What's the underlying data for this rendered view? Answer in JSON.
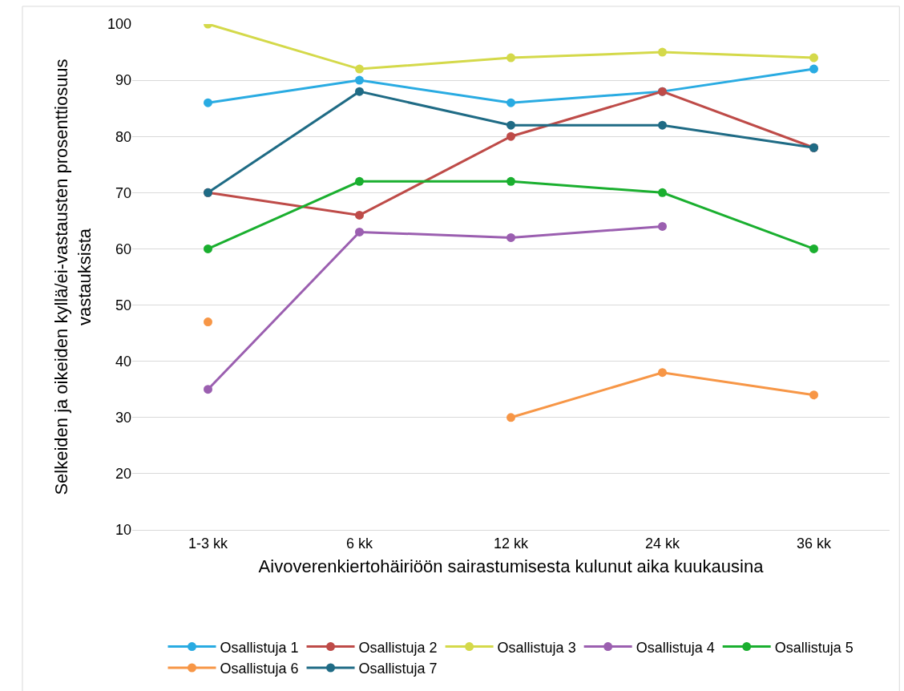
{
  "chart_data": {
    "type": "line",
    "xlabel": "Aivoverenkiertohäiriöön sairastumisesta kulunut aika kuukausina",
    "ylabel": "Selkeiden ja oikeiden kyllä/ei-vastausten prosenttiosuus vastauksista",
    "categories": [
      "1-3 kk",
      "6 kk",
      "12 kk",
      "24 kk",
      "36 kk"
    ],
    "series": [
      {
        "name": "Osallistuja 1",
        "color": "#29abe2",
        "values": [
          86,
          90,
          86,
          88,
          92
        ]
      },
      {
        "name": "Osallistuja 2",
        "color": "#be4b48",
        "values": [
          70,
          66,
          80,
          88,
          78
        ]
      },
      {
        "name": "Osallistuja 3",
        "color": "#d4d94a",
        "values": [
          100,
          92,
          94,
          95,
          94
        ]
      },
      {
        "name": "Osallistuja 4",
        "color": "#9b5fb0",
        "values": [
          35,
          63,
          62,
          64,
          null
        ]
      },
      {
        "name": "Osallistuja 5",
        "color": "#1aaf2f",
        "values": [
          60,
          72,
          72,
          70,
          60
        ]
      },
      {
        "name": "Osallistuja 6",
        "color": "#f79646",
        "values": [
          47,
          null,
          30,
          38,
          34
        ]
      },
      {
        "name": "Osallistuja 7",
        "color": "#1f6b85",
        "values": [
          70,
          88,
          82,
          82,
          78
        ]
      }
    ],
    "ylim": [
      10,
      100
    ],
    "yticks": [
      10,
      20,
      30,
      40,
      50,
      60,
      70,
      80,
      90,
      100
    ],
    "grid": "y",
    "legend": "bottom",
    "marker": "circle",
    "line_style": "solid"
  }
}
